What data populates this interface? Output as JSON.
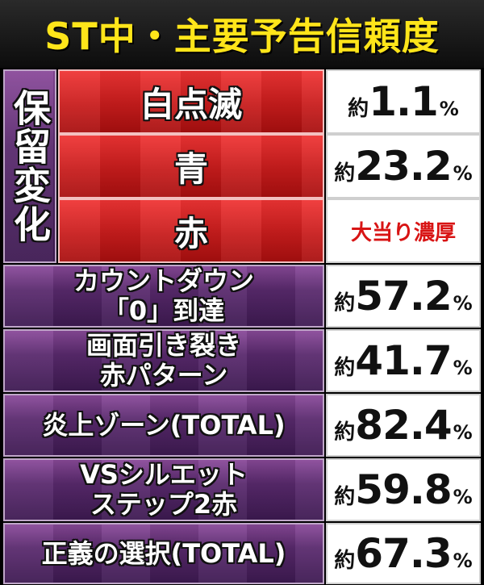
{
  "title": "ST中・主要予告信頼度",
  "group_label": "保留変化",
  "hold_rows": [
    {
      "label": "白点滅",
      "prefix": "約",
      "value": "1.1",
      "unit": "%"
    },
    {
      "label": "青",
      "prefix": "約",
      "value": "23.2",
      "unit": "%"
    },
    {
      "label": "赤",
      "text": "大当り濃厚"
    }
  ],
  "rows": [
    {
      "line1": "カウントダウン",
      "line2": "「0」到達",
      "prefix": "約",
      "value": "57.2",
      "unit": "%"
    },
    {
      "line1": "画面引き裂き",
      "line2": "赤パターン",
      "prefix": "約",
      "value": "41.7",
      "unit": "%"
    },
    {
      "line1": "炎上ゾーン(TOTAL)",
      "line2": "",
      "prefix": "約",
      "value": "82.4",
      "unit": "%"
    },
    {
      "line1": "VSシルエット",
      "line2": "ステップ2赤",
      "prefix": "約",
      "value": "59.8",
      "unit": "%"
    },
    {
      "line1": "正義の選択(TOTAL)",
      "line2": "",
      "prefix": "約",
      "value": "67.3",
      "unit": "%"
    }
  ],
  "colors": {
    "title_text": "#ffe51a",
    "red_panel": "#d81f1f",
    "purple_panel": "#5a2a6e",
    "jackpot_text": "#d81414"
  }
}
